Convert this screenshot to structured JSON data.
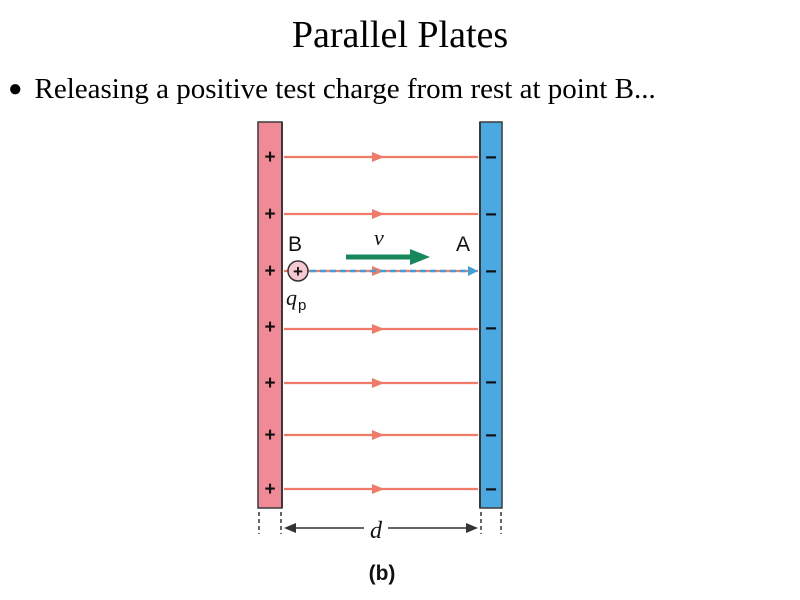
{
  "slide": {
    "title": "Parallel Plates",
    "bullet": "Releasing a positive test charge from rest at point B..."
  },
  "diagram": {
    "positive_plate_color": "#f08a96",
    "negative_plate_color": "#4aa9e0",
    "field_line_color": "#ef7a68",
    "velocity_arrow_color": "#17875c",
    "path_line_color": "#3f9fd8",
    "plus_sign": "+",
    "minus_sign": "−",
    "point_b_label": "B",
    "point_a_label": "A",
    "velocity_label": "v",
    "charge_label": "q",
    "charge_subscript": "p",
    "charge_symbol": "+",
    "distance_label": "d",
    "panel_label": "(b)"
  }
}
